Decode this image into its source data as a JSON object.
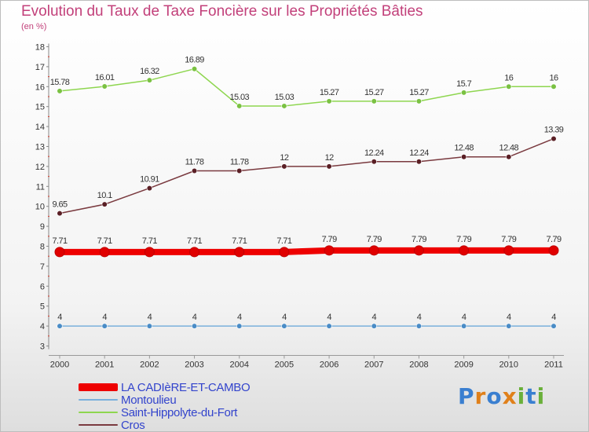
{
  "title": "Evolution du Taux de Taxe Foncière sur les Propriétés Bâties",
  "subtitle": "(en %)",
  "logo": {
    "text": "Proxiti",
    "letters": [
      {
        "ch": "P",
        "color": "#3a7fd0"
      },
      {
        "ch": "r",
        "color": "#e0801a"
      },
      {
        "ch": "o",
        "color": "#3a7fd0"
      },
      {
        "ch": "x",
        "color": "#e0801a"
      },
      {
        "ch": "i",
        "color": "#6ab03a"
      },
      {
        "ch": "t",
        "color": "#3a7fd0"
      },
      {
        "ch": "i",
        "color": "#6ab03a"
      }
    ]
  },
  "chart_data": {
    "type": "line",
    "title": "Evolution du Taux de Taxe Foncière sur les Propriétés Bâties",
    "ylabel": "(en %)",
    "xlabel": "",
    "ylim": [
      3,
      18
    ],
    "grid": false,
    "legend_position": "bottom-left",
    "categories": [
      "2000",
      "2001",
      "2002",
      "2003",
      "2004",
      "2005",
      "2006",
      "2007",
      "2008",
      "2009",
      "2010",
      "2011"
    ],
    "y_ticks": [
      "3",
      "4",
      "5",
      "6",
      "7",
      "8",
      "9",
      "10",
      "11",
      "12",
      "13",
      "14",
      "15",
      "16",
      "17",
      "18"
    ],
    "series": [
      {
        "name": "Saint-Hippolyte-du-Fort",
        "color": "#8ed64f",
        "marker": "#7ac142",
        "values": [
          15.78,
          16.01,
          16.32,
          16.89,
          15.03,
          15.03,
          15.27,
          15.27,
          15.27,
          15.7,
          16,
          16
        ],
        "labels": [
          "15.78",
          "16.01",
          "16.32",
          "16.89",
          "15.03",
          "15.03",
          "15.27",
          "15.27",
          "15.27",
          "15.7",
          "16",
          "16"
        ]
      },
      {
        "name": "Cros",
        "color": "#7a3a3f",
        "marker": "#5a1f25",
        "values": [
          9.65,
          10.1,
          10.91,
          11.78,
          11.78,
          12,
          12,
          12.24,
          12.24,
          12.48,
          12.48,
          13.39
        ],
        "labels": [
          "9.65",
          "10.1",
          "10.91",
          "11.78",
          "11.78",
          "12",
          "12",
          "12.24",
          "12.24",
          "12.48",
          "12.48",
          "13.39"
        ]
      },
      {
        "name": "LA CADIèRE-ET-CAMBO",
        "color": "#ee0000",
        "marker": "#e00000",
        "values": [
          7.71,
          7.71,
          7.71,
          7.71,
          7.71,
          7.71,
          7.79,
          7.79,
          7.79,
          7.79,
          7.79,
          7.79
        ],
        "labels": [
          "7.71",
          "7.71",
          "7.71",
          "7.71",
          "7.71",
          "7.71",
          "7.79",
          "7.79",
          "7.79",
          "7.79",
          "7.79",
          "7.79"
        ]
      },
      {
        "name": "Montoulieu",
        "color": "#7ab0dc",
        "marker": "#4a8cc6",
        "values": [
          4,
          4,
          4,
          4,
          4,
          4,
          4,
          4,
          4,
          4,
          4,
          4
        ],
        "labels": [
          "4",
          "4",
          "4",
          "4",
          "4",
          "4",
          "4",
          "4",
          "4",
          "4",
          "4",
          "4"
        ]
      }
    ]
  },
  "legend": [
    {
      "label": "LA CADIèRE-ET-CAMBO",
      "color": "#ee0000",
      "weight": "thick"
    },
    {
      "label": "Montoulieu",
      "color": "#7ab0dc",
      "weight": "thin"
    },
    {
      "label": "Saint-Hippolyte-du-Fort",
      "color": "#8ed64f",
      "weight": "thin"
    },
    {
      "label": "Cros",
      "color": "#7a3a3f",
      "weight": "thin"
    }
  ]
}
